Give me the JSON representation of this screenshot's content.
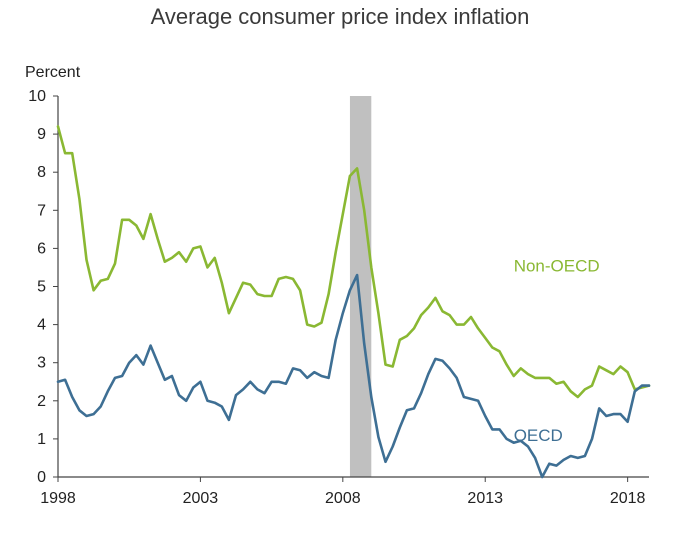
{
  "chart_data": {
    "type": "line",
    "title": "Average consumer price index inflation",
    "ylabel": "Percent",
    "xlabel": "",
    "xlim": [
      1998,
      2018.75
    ],
    "ylim": [
      0,
      10
    ],
    "yticks": [
      "0",
      "1",
      "2",
      "3",
      "4",
      "5",
      "6",
      "7",
      "8",
      "9",
      "10"
    ],
    "xticks": [
      {
        "value": 1998,
        "label": "1998"
      },
      {
        "value": 2003,
        "label": "2003"
      },
      {
        "value": 2008,
        "label": "2008"
      },
      {
        "value": 2013,
        "label": "2013"
      },
      {
        "value": 2018,
        "label": "2018"
      }
    ],
    "shaded_region": {
      "start": 2008.25,
      "end": 2009.0,
      "color": "#c0c0c0"
    },
    "x": [
      1998.0,
      1998.25,
      1998.5,
      1998.75,
      1999.0,
      1999.25,
      1999.5,
      1999.75,
      2000.0,
      2000.25,
      2000.5,
      2000.75,
      2001.0,
      2001.25,
      2001.5,
      2001.75,
      2002.0,
      2002.25,
      2002.5,
      2002.75,
      2003.0,
      2003.25,
      2003.5,
      2003.75,
      2004.0,
      2004.25,
      2004.5,
      2004.75,
      2005.0,
      2005.25,
      2005.5,
      2005.75,
      2006.0,
      2006.25,
      2006.5,
      2006.75,
      2007.0,
      2007.25,
      2007.5,
      2007.75,
      2008.0,
      2008.25,
      2008.5,
      2008.75,
      2009.0,
      2009.25,
      2009.5,
      2009.75,
      2010.0,
      2010.25,
      2010.5,
      2010.75,
      2011.0,
      2011.25,
      2011.5,
      2011.75,
      2012.0,
      2012.25,
      2012.5,
      2012.75,
      2013.0,
      2013.25,
      2013.5,
      2013.75,
      2014.0,
      2014.25,
      2014.5,
      2014.75,
      2015.0,
      2015.25,
      2015.5,
      2015.75,
      2016.0,
      2016.25,
      2016.5,
      2016.75,
      2017.0,
      2017.25,
      2017.5,
      2017.75,
      2018.0,
      2018.25,
      2018.5,
      2018.75
    ],
    "series": [
      {
        "name": "Non-OECD",
        "color": "#8ab833",
        "values": [
          9.2,
          8.5,
          8.5,
          7.3,
          5.7,
          4.9,
          5.15,
          5.2,
          5.6,
          6.75,
          6.75,
          6.6,
          6.25,
          6.9,
          6.25,
          5.65,
          5.75,
          5.9,
          5.65,
          6.0,
          6.05,
          5.5,
          5.75,
          5.1,
          4.3,
          4.7,
          5.1,
          5.05,
          4.8,
          4.75,
          4.75,
          5.2,
          5.25,
          5.2,
          4.9,
          4.0,
          3.95,
          4.05,
          4.8,
          5.9,
          6.9,
          7.9,
          8.1,
          7.0,
          5.5,
          4.3,
          2.95,
          2.9,
          3.6,
          3.7,
          3.9,
          4.25,
          4.45,
          4.7,
          4.35,
          4.25,
          4.0,
          4.0,
          4.2,
          3.9,
          3.65,
          3.4,
          3.3,
          2.95,
          2.65,
          2.85,
          2.7,
          2.6,
          2.6,
          2.6,
          2.45,
          2.5,
          2.25,
          2.1,
          2.3,
          2.4,
          2.9,
          2.8,
          2.7,
          2.9,
          2.75,
          2.3,
          2.35,
          2.4
        ]
      },
      {
        "name": "OECD",
        "color": "#3e6f94",
        "values": [
          2.5,
          2.55,
          2.1,
          1.75,
          1.6,
          1.65,
          1.85,
          2.25,
          2.6,
          2.65,
          3.0,
          3.2,
          2.95,
          3.45,
          3.0,
          2.55,
          2.65,
          2.15,
          2.0,
          2.35,
          2.5,
          2.0,
          1.95,
          1.85,
          1.5,
          2.15,
          2.3,
          2.5,
          2.3,
          2.2,
          2.5,
          2.5,
          2.45,
          2.85,
          2.8,
          2.6,
          2.75,
          2.65,
          2.6,
          3.6,
          4.3,
          4.9,
          5.3,
          3.5,
          2.1,
          1.05,
          0.4,
          0.8,
          1.3,
          1.75,
          1.8,
          2.2,
          2.7,
          3.1,
          3.05,
          2.85,
          2.6,
          2.1,
          2.05,
          2.0,
          1.6,
          1.25,
          1.25,
          1.0,
          0.9,
          0.95,
          0.8,
          0.5,
          0.0,
          0.35,
          0.3,
          0.45,
          0.55,
          0.5,
          0.55,
          1.0,
          1.8,
          1.6,
          1.65,
          1.65,
          1.45,
          2.25,
          2.4,
          2.4
        ]
      }
    ],
    "annotations": [
      {
        "text": "Non-OECD",
        "series": "Non-OECD",
        "x": 2014.0,
        "y": 5.4
      },
      {
        "text": "OECD",
        "series": "OECD",
        "x": 2014.0,
        "y": 0.95
      }
    ]
  }
}
